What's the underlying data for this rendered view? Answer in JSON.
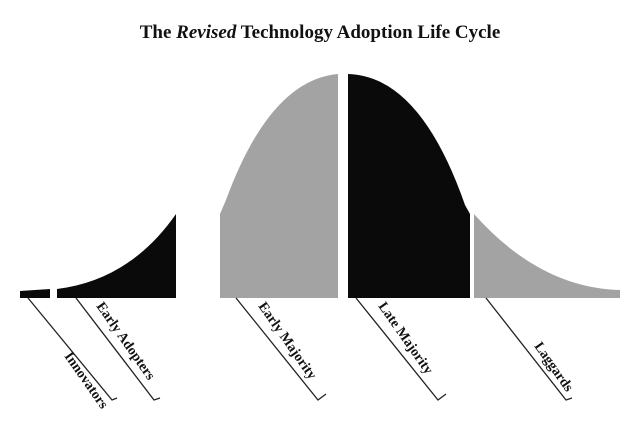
{
  "title": {
    "prefix": "The ",
    "emphasis": "Revised",
    "suffix": " Technology Adoption Life Cycle"
  },
  "segments": [
    {
      "label": "Innovators",
      "color": "#0a0a0a"
    },
    {
      "label": "Early Adopters",
      "color": "#0a0a0a"
    },
    {
      "label": "Early Majority",
      "color": "#a3a3a3"
    },
    {
      "label": "Late Majority",
      "color": "#0a0a0a"
    },
    {
      "label": "Laggards",
      "color": "#a3a3a3"
    }
  ]
}
